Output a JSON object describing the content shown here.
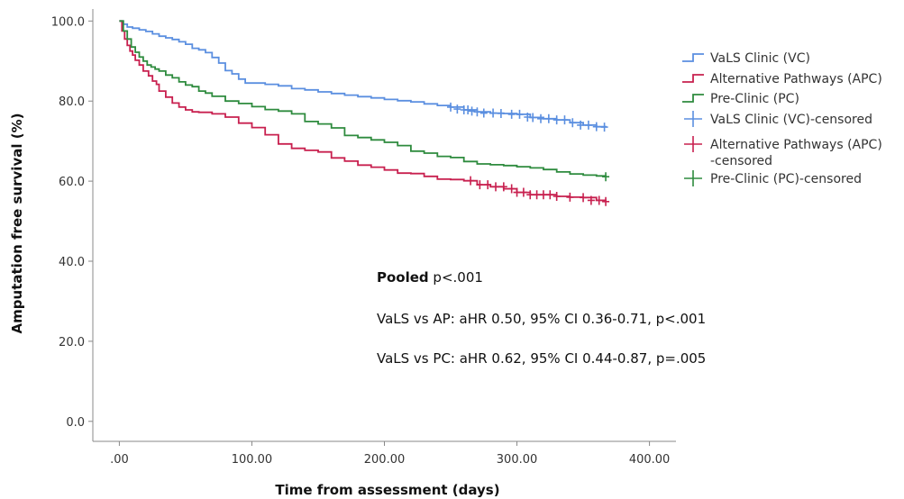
{
  "chart_data": {
    "type": "line",
    "subtype": "kaplan-meier step curve",
    "xlabel": "Time from assessment (days)",
    "ylabel": "Amputation free survival (%)",
    "xlim": [
      -20,
      420
    ],
    "ylim": [
      -5,
      103
    ],
    "x_ticks": [
      0,
      100,
      200,
      300,
      400
    ],
    "x_tick_labels": [
      ".00",
      "100.00",
      "200.00",
      "300.00",
      "400.00"
    ],
    "y_ticks": [
      0,
      20,
      40,
      60,
      80,
      100
    ],
    "y_tick_labels": [
      "0.0",
      "20.0",
      "40.0",
      "60.0",
      "80.0",
      "100.0"
    ],
    "grid": false,
    "legend_position": "top-right",
    "series": [
      {
        "name": "VaLS Clinic (VC)",
        "color": "#5b8fe0",
        "x": [
          0,
          3,
          6,
          10,
          15,
          20,
          25,
          30,
          35,
          40,
          45,
          50,
          55,
          60,
          65,
          70,
          75,
          80,
          85,
          90,
          95,
          100,
          110,
          120,
          130,
          140,
          150,
          160,
          170,
          180,
          190,
          200,
          210,
          220,
          230,
          240,
          250,
          260,
          270,
          280,
          290,
          300,
          310,
          320,
          330,
          340,
          350,
          360,
          367
        ],
        "y": [
          100,
          99.2,
          98.5,
          98.2,
          97.8,
          97.4,
          96.8,
          96.2,
          95.8,
          95.4,
          94.8,
          94.2,
          93.2,
          92.8,
          92.1,
          90.9,
          89.5,
          87.6,
          86.8,
          85.5,
          84.5,
          84.5,
          84.2,
          83.8,
          83.1,
          82.8,
          82.3,
          81.9,
          81.5,
          81.1,
          80.8,
          80.4,
          80.1,
          79.8,
          79.3,
          78.9,
          78.5,
          77.8,
          77.3,
          77.0,
          76.9,
          76.7,
          75.9,
          75.6,
          75.3,
          74.6,
          74.0,
          73.6,
          73.5
        ],
        "censored_x": [
          250,
          255,
          260,
          263,
          266,
          270,
          275,
          282,
          288,
          296,
          302,
          308,
          312,
          318,
          324,
          330,
          336,
          342,
          348,
          354,
          360,
          366
        ],
        "censored_y": [
          78.5,
          78.0,
          77.8,
          77.8,
          77.5,
          77.3,
          77.0,
          77.0,
          76.9,
          76.7,
          76.7,
          76.0,
          75.9,
          75.6,
          75.6,
          75.3,
          75.3,
          74.6,
          74.0,
          74.0,
          73.6,
          73.5
        ]
      },
      {
        "name": "Alternative Pathways (APC)",
        "color": "#c8204f",
        "x": [
          0,
          2,
          4,
          6,
          8,
          10,
          12,
          15,
          18,
          22,
          25,
          28,
          30,
          35,
          40,
          45,
          50,
          55,
          60,
          70,
          80,
          90,
          100,
          110,
          120,
          130,
          140,
          150,
          160,
          170,
          180,
          190,
          200,
          210,
          220,
          230,
          240,
          250,
          260,
          270,
          280,
          290,
          300,
          310,
          320,
          330,
          340,
          350,
          360,
          367
        ],
        "y": [
          100,
          97.5,
          95.5,
          93.9,
          92.5,
          91.5,
          90.2,
          89.0,
          87.5,
          86.3,
          85.0,
          84.2,
          82.5,
          81.0,
          79.5,
          78.5,
          77.8,
          77.3,
          77.2,
          76.8,
          76.0,
          74.5,
          73.4,
          71.6,
          69.3,
          68.2,
          67.7,
          67.3,
          65.8,
          65.0,
          64.0,
          63.5,
          62.8,
          62.0,
          61.9,
          61.2,
          60.5,
          60.4,
          60.1,
          59.1,
          58.6,
          58.1,
          57.2,
          56.6,
          56.6,
          56.2,
          56.0,
          55.9,
          55.2,
          54.9
        ],
        "censored_x": [
          265,
          272,
          278,
          284,
          290,
          296,
          300,
          305,
          310,
          315,
          320,
          325,
          330,
          340,
          350,
          356,
          362,
          367
        ],
        "censored_y": [
          60.1,
          59.1,
          59.1,
          58.6,
          58.6,
          58.1,
          57.2,
          57.2,
          56.6,
          56.6,
          56.6,
          56.6,
          56.2,
          56.0,
          55.9,
          55.2,
          55.2,
          54.9
        ]
      },
      {
        "name": "Pre-Clinic (PC)",
        "color": "#2e8b3e",
        "x": [
          0,
          3,
          6,
          9,
          12,
          15,
          18,
          21,
          24,
          27,
          30,
          35,
          40,
          45,
          50,
          55,
          60,
          65,
          70,
          80,
          90,
          100,
          110,
          120,
          130,
          140,
          150,
          160,
          170,
          180,
          190,
          200,
          210,
          220,
          230,
          240,
          250,
          260,
          270,
          280,
          290,
          300,
          310,
          320,
          330,
          340,
          350,
          360,
          367
        ],
        "y": [
          100,
          97.5,
          95.5,
          93.5,
          92.2,
          91.0,
          90.0,
          89.0,
          88.5,
          88.0,
          87.5,
          86.5,
          85.8,
          84.8,
          84.0,
          83.6,
          82.5,
          82.0,
          81.2,
          80.0,
          79.4,
          78.6,
          77.9,
          77.5,
          76.8,
          74.9,
          74.3,
          73.3,
          71.4,
          70.9,
          70.3,
          69.7,
          68.9,
          67.5,
          67.0,
          66.2,
          65.9,
          64.9,
          64.3,
          64.1,
          63.9,
          63.6,
          63.3,
          62.9,
          62.3,
          61.8,
          61.5,
          61.3,
          61.1
        ],
        "censored_x": [
          367
        ],
        "censored_y": [
          61.1
        ]
      }
    ],
    "legend_entries": [
      {
        "label": "VaLS Clinic (VC)",
        "kind": "step",
        "color": "#5b8fe0"
      },
      {
        "label": "Alternative Pathways (APC)",
        "kind": "step",
        "color": "#c8204f"
      },
      {
        "label": "Pre-Clinic (PC)",
        "kind": "step",
        "color": "#2e8b3e"
      },
      {
        "label": "VaLS Clinic (VC)-censored",
        "kind": "cross",
        "color": "#5b8fe0"
      },
      {
        "label": "Alternative Pathways (APC)",
        "label2": "-censored",
        "kind": "cross",
        "color": "#c8204f"
      },
      {
        "label": "Pre-Clinic (PC)-censored",
        "kind": "cross",
        "color": "#2e8b3e"
      }
    ],
    "annotations": {
      "pooled_bold": "Pooled",
      "pooled_rest": " p<.001",
      "line2": "VaLS vs AP: aHR 0.50, 95% CI 0.36-0.71, p<.001",
      "line3": "VaLS vs PC: aHR 0.62, 95% CI 0.44-0.87, p=.005"
    }
  }
}
